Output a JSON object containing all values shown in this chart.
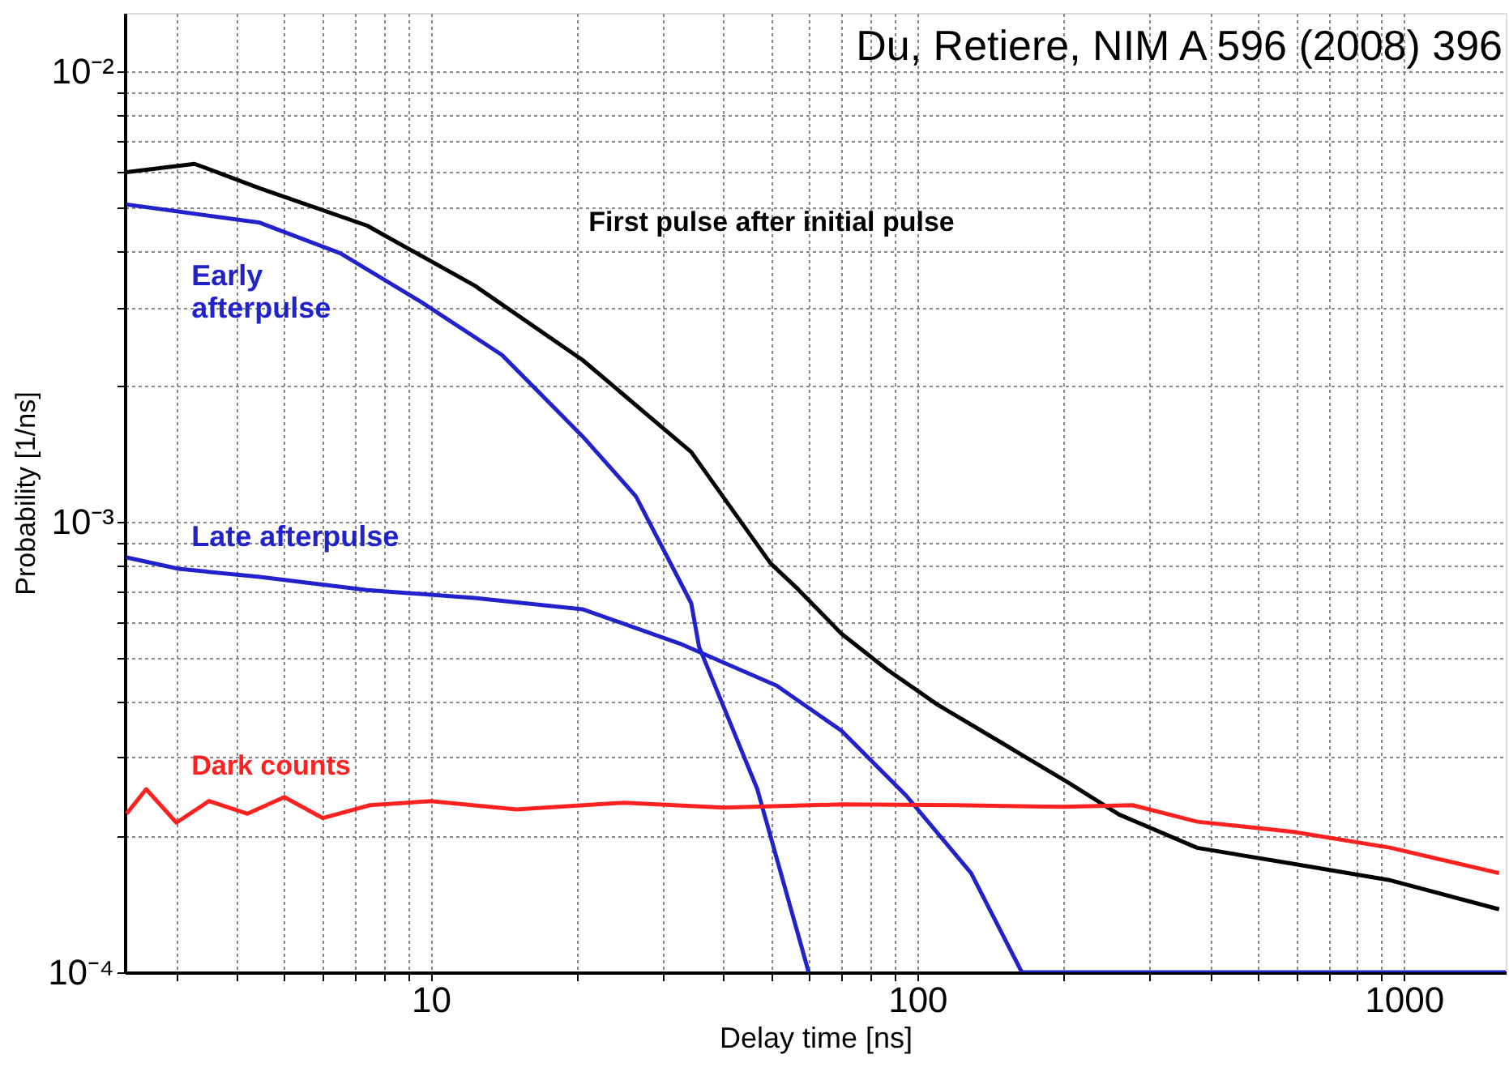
{
  "chart_data": {
    "type": "line",
    "xlabel": "Delay time [ns]",
    "ylabel": "Probability [1/ns]",
    "log": "xy",
    "grid": true,
    "line_style": "solid",
    "marker": "none",
    "xlim": [
      2.35,
      1620
    ],
    "ylim": [
      0.0001,
      0.0135
    ],
    "xticks": [
      {
        "value": 3,
        "label": null
      },
      {
        "value": 4,
        "label": null
      },
      {
        "value": 5,
        "label": null
      },
      {
        "value": 6,
        "label": null
      },
      {
        "value": 7,
        "label": null
      },
      {
        "value": 8,
        "label": null
      },
      {
        "value": 9,
        "label": null
      },
      10,
      {
        "value": 20,
        "label": null
      },
      {
        "value": 30,
        "label": null
      },
      {
        "value": 40,
        "label": null
      },
      {
        "value": 50,
        "label": null
      },
      {
        "value": 60,
        "label": null
      },
      {
        "value": 70,
        "label": null
      },
      {
        "value": 80,
        "label": null
      },
      {
        "value": 90,
        "label": null
      },
      100,
      {
        "value": 200,
        "label": null
      },
      {
        "value": 300,
        "label": null
      },
      {
        "value": 400,
        "label": null
      },
      {
        "value": 500,
        "label": null
      },
      {
        "value": 600,
        "label": null
      },
      {
        "value": 700,
        "label": null
      },
      {
        "value": 800,
        "label": null
      },
      {
        "value": 900,
        "label": null
      },
      1000
    ],
    "yticks": [
      {
        "value": 0.0001,
        "label": "10⁻⁴"
      },
      {
        "value": 0.0002,
        "label": null
      },
      {
        "value": 0.0003,
        "label": null
      },
      {
        "value": 0.0004,
        "label": null
      },
      {
        "value": 0.0005,
        "label": null
      },
      {
        "value": 0.0006,
        "label": null
      },
      {
        "value": 0.0007,
        "label": null
      },
      {
        "value": 0.0008,
        "label": null
      },
      {
        "value": 0.0009,
        "label": null
      },
      {
        "value": 0.001,
        "label": "10⁻³"
      },
      {
        "value": 0.002,
        "label": null
      },
      {
        "value": 0.003,
        "label": null
      },
      {
        "value": 0.004,
        "label": null
      },
      {
        "value": 0.005,
        "label": null
      },
      {
        "value": 0.006,
        "label": null
      },
      {
        "value": 0.007,
        "label": null
      },
      {
        "value": 0.008,
        "label": null
      },
      {
        "value": 0.009,
        "label": null
      },
      {
        "value": 0.01,
        "label": "10⁻²"
      }
    ],
    "annotations": [
      "Du, Retiere, NIM A 596 (2008) 396"
    ],
    "series": [
      {
        "name": "First pulse after initial pulse",
        "color": "#000000",
        "x": [
          2.37,
          3.27,
          4.45,
          7.4,
          12.3,
          20.5,
          34.3,
          49.9,
          56.8,
          69.8,
          86.5,
          110,
          150,
          204,
          260,
          376,
          594,
          940,
          1570
        ],
        "values": [
          0.00598,
          0.00624,
          0.00551,
          0.00455,
          0.00335,
          0.00229,
          0.00143,
          0.00081,
          0.00071,
          0.000565,
          0.000471,
          0.000393,
          0.000322,
          0.000264,
          0.000224,
          0.000189,
          0.000174,
          0.00016,
          0.000138
        ]
      },
      {
        "name": "Early\nafterpulse",
        "color": "#2222cc",
        "x": [
          2.37,
          4.45,
          6.52,
          9.55,
          14.0,
          20.5,
          26.4,
          34.3,
          35.6,
          46.9,
          59.8
        ],
        "values": [
          0.00507,
          0.00462,
          0.00395,
          0.00308,
          0.00235,
          0.00155,
          0.00114,
          0.00066,
          0.000528,
          0.000255,
          0.0001
        ]
      },
      {
        "name": "Late afterpulse",
        "color": "#2222cc",
        "x": [
          2.37,
          3.03,
          4.45,
          7.4,
          12.3,
          20.5,
          32.5,
          51.4,
          69.8,
          94.8,
          129,
          164,
          1620
        ],
        "values": [
          0.000834,
          0.000787,
          0.000755,
          0.000706,
          0.000678,
          0.00064,
          0.000537,
          0.000433,
          0.000344,
          0.000247,
          0.000166,
          0.0001,
          0.0001
        ]
      },
      {
        "name": "Dark counts",
        "color": "#ff2020",
        "x": [
          2.37,
          2.6,
          3.0,
          3.5,
          4.2,
          5.0,
          6.0,
          7.5,
          10,
          15,
          25,
          40,
          70,
          120,
          200,
          277,
          376,
          594,
          940,
          1570
        ],
        "values": [
          0.000225,
          0.000255,
          0.000215,
          0.00024,
          0.000225,
          0.000245,
          0.00022,
          0.000235,
          0.00024,
          0.00023,
          0.000238,
          0.000232,
          0.000236,
          0.000235,
          0.000233,
          0.000235,
          0.000216,
          0.000205,
          0.000189,
          0.000166
        ]
      }
    ]
  }
}
